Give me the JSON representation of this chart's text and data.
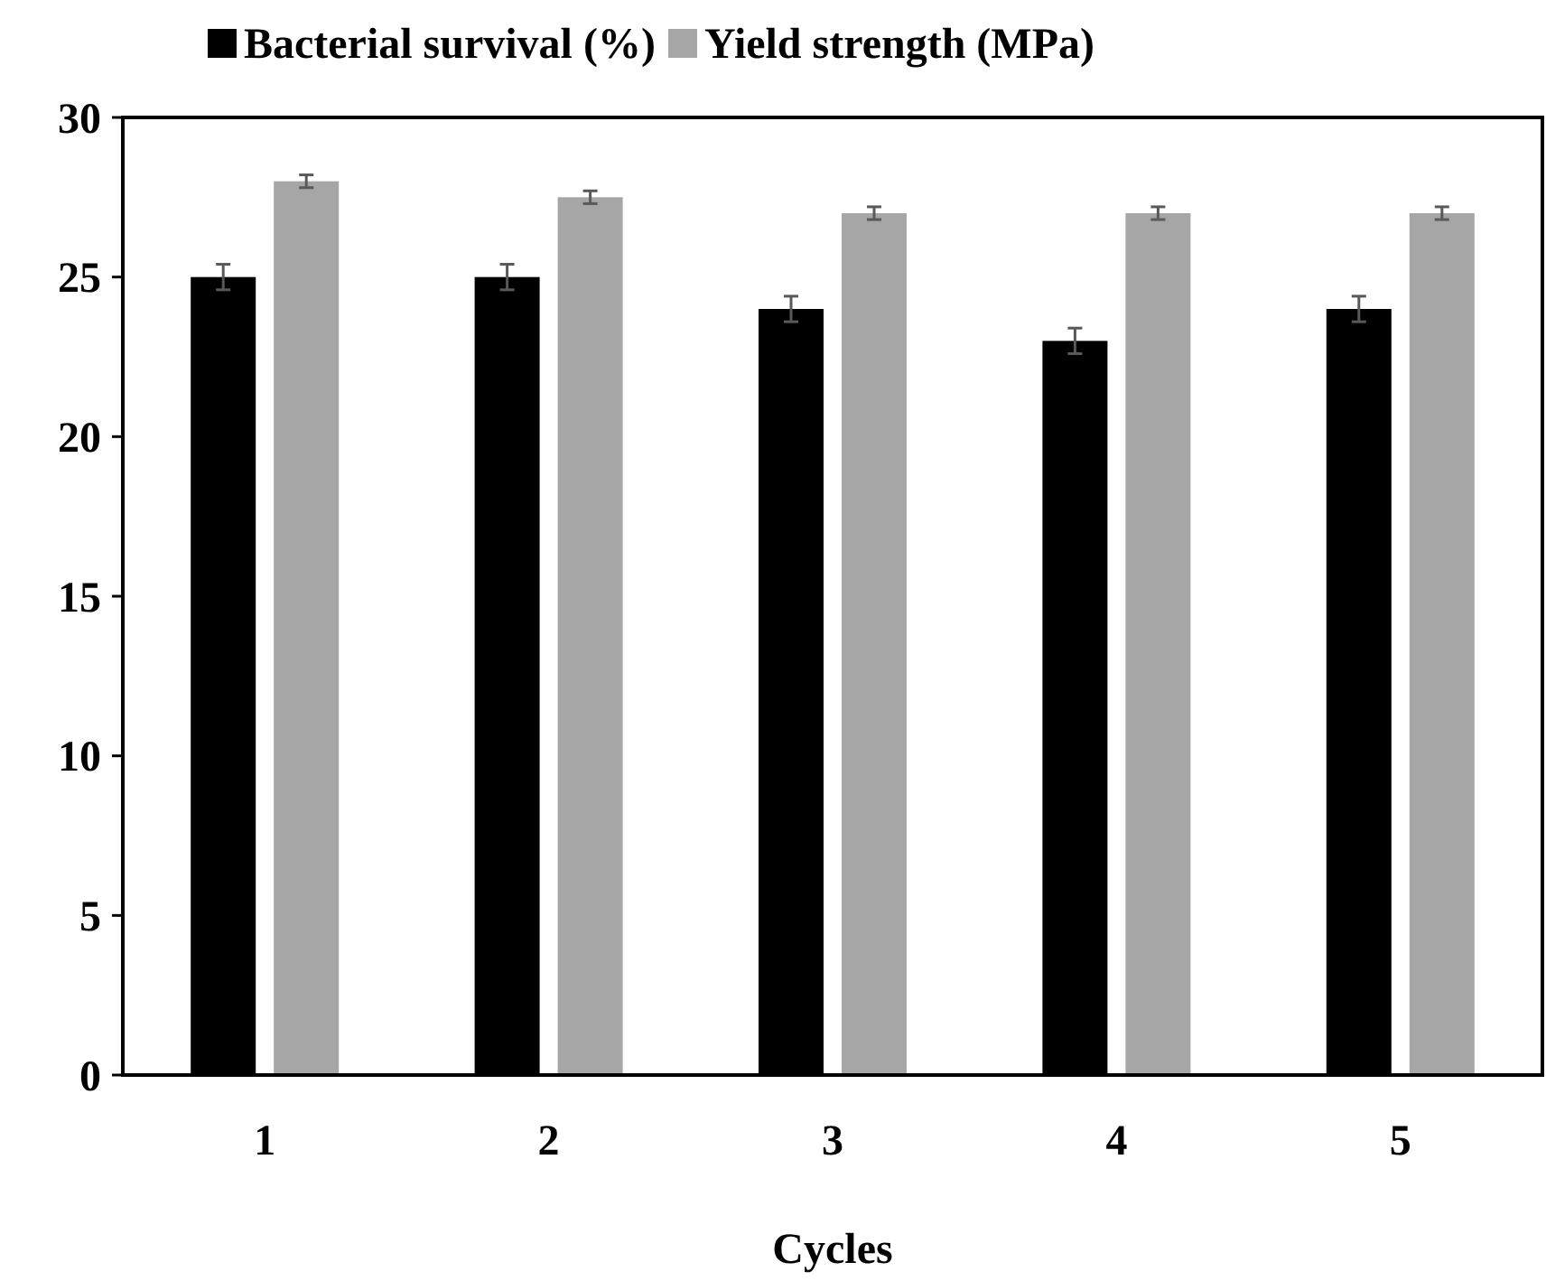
{
  "chart_data": {
    "type": "bar",
    "xlabel": "Cycles",
    "categories": [
      "1",
      "2",
      "3",
      "4",
      "5"
    ],
    "series": [
      {
        "name": "Bacterial survival (%)",
        "color": "#000000",
        "values": [
          25,
          25,
          24,
          23,
          24
        ],
        "errors": [
          0.4,
          0.4,
          0.4,
          0.4,
          0.4
        ]
      },
      {
        "name": "Yield strength (MPa)",
        "color": "#a6a6a6",
        "values": [
          28,
          27.5,
          27,
          27,
          27
        ],
        "errors": [
          0.2,
          0.2,
          0.2,
          0.2,
          0.2
        ]
      }
    ],
    "ylim": [
      0,
      30
    ],
    "yticks": [
      0,
      5,
      10,
      15,
      20,
      25,
      30
    ],
    "grid": false,
    "legend": "top"
  }
}
